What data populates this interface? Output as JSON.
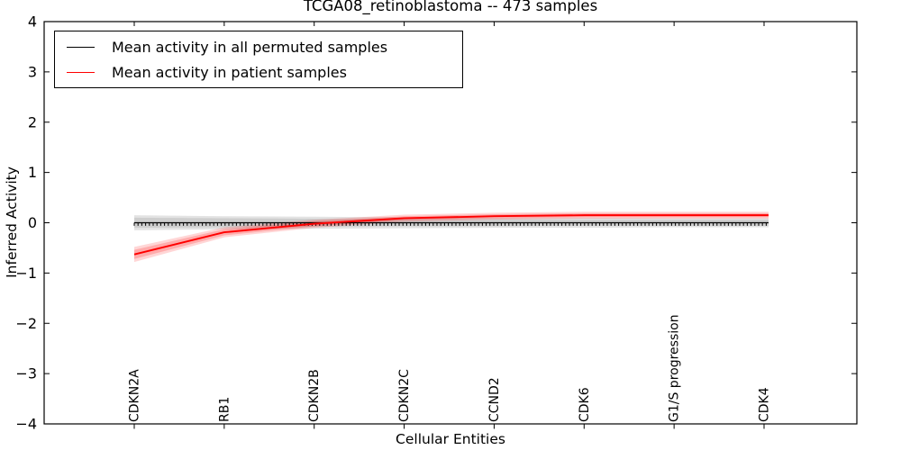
{
  "chart_data": {
    "type": "line",
    "title": "TCGA08_retinoblastoma -- 473 samples",
    "xlabel": "Cellular Entities",
    "ylabel": "Inferred Activity",
    "ylim": [
      -4,
      4
    ],
    "yticks": [
      4,
      3,
      2,
      1,
      0,
      -1,
      -2,
      -3,
      -4
    ],
    "grid": false,
    "legend_position": "upper left",
    "categories": [
      "CDKN2A",
      "RB1",
      "CDKN2B",
      "CDKN2C",
      "CCND2",
      "CDK6",
      "G1/S progression",
      "CDK4"
    ],
    "series": [
      {
        "name": "Mean activity in all permuted samples",
        "color": "#000000",
        "marker": "tickdown",
        "values": [
          0,
          0,
          0,
          0,
          0,
          0,
          0,
          0
        ],
        "band_outer_lower": [
          -0.15,
          -0.13,
          -0.12,
          -0.11,
          -0.1,
          -0.1,
          -0.09,
          -0.09
        ],
        "band_outer_upper": [
          0.15,
          0.13,
          0.12,
          0.11,
          0.1,
          0.1,
          0.09,
          0.09
        ],
        "band_inner_lower": [
          -0.1,
          -0.09,
          -0.08,
          -0.07,
          -0.07,
          -0.06,
          -0.06,
          -0.06
        ],
        "band_inner_upper": [
          0.1,
          0.09,
          0.08,
          0.07,
          0.07,
          0.06,
          0.06,
          0.06
        ]
      },
      {
        "name": "Mean activity in patient samples",
        "color": "#ff0000",
        "marker": "none",
        "values": [
          -0.63,
          -0.19,
          -0.02,
          0.09,
          0.13,
          0.15,
          0.15,
          0.15
        ],
        "band_outer_lower": [
          -0.78,
          -0.29,
          -0.1,
          0.02,
          0.06,
          0.08,
          0.08,
          0.08
        ],
        "band_outer_upper": [
          -0.48,
          -0.09,
          0.06,
          0.16,
          0.2,
          0.22,
          0.22,
          0.22
        ],
        "band_inner_lower": [
          -0.72,
          -0.25,
          -0.07,
          0.05,
          0.09,
          0.11,
          0.11,
          0.11
        ],
        "band_inner_upper": [
          -0.54,
          -0.13,
          0.03,
          0.13,
          0.17,
          0.19,
          0.19,
          0.19
        ]
      }
    ]
  }
}
